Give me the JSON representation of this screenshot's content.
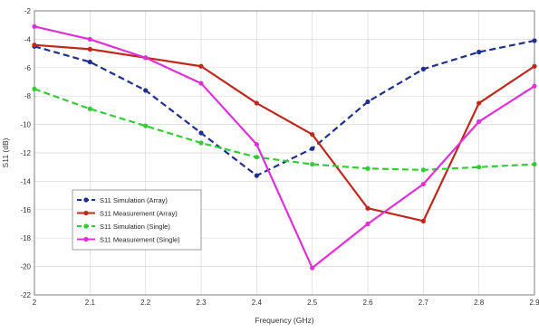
{
  "chart_data": {
    "type": "line",
    "xlabel": "Frequency (GHz)",
    "ylabel": "S11 (dB)",
    "xlim": [
      2.0,
      2.9
    ],
    "ylim": [
      -22,
      -2
    ],
    "xticks": [
      2,
      2.1,
      2.2,
      2.3,
      2.4,
      2.5,
      2.6,
      2.7,
      2.8,
      2.9
    ],
    "xtick_labels": [
      "2",
      "2.1",
      "2.2",
      "2.3",
      "2.4",
      "2.5",
      "2.6",
      "2.7",
      "2.8",
      "2.9"
    ],
    "yticks": [
      -2,
      -4,
      -6,
      -8,
      -10,
      -12,
      -14,
      -16,
      -18,
      -20,
      -22
    ],
    "ytick_labels": [
      "-2",
      "-4",
      "-6",
      "-8",
      "-10",
      "-12",
      "-14",
      "-16",
      "-18",
      "-20",
      "-22"
    ],
    "grid": true,
    "legend_position": "bottom-left",
    "series": [
      {
        "name": "S11 Simulation (Array)",
        "color": "#1f2f8f",
        "dash": "dashed",
        "marker": "circle",
        "x": [
          2.0,
          2.1,
          2.2,
          2.3,
          2.4,
          2.5,
          2.6,
          2.7,
          2.8,
          2.9
        ],
        "y": [
          -4.5,
          -5.6,
          -7.6,
          -10.6,
          -13.6,
          -11.7,
          -8.4,
          -6.1,
          -4.9,
          -4.1
        ]
      },
      {
        "name": "S11 Measurement (Array)",
        "color": "#c0281c",
        "dash": "solid",
        "marker": "circle",
        "x": [
          2.0,
          2.1,
          2.2,
          2.3,
          2.4,
          2.5,
          2.6,
          2.7,
          2.8,
          2.9
        ],
        "y": [
          -4.4,
          -4.7,
          -5.3,
          -5.9,
          -8.5,
          -10.7,
          -15.9,
          -16.8,
          -8.5,
          -5.9
        ]
      },
      {
        "name": "S11 Simulation (Single)",
        "color": "#33cc33",
        "dash": "dashed",
        "marker": "circle",
        "x": [
          2.0,
          2.1,
          2.2,
          2.3,
          2.4,
          2.5,
          2.6,
          2.7,
          2.8,
          2.9
        ],
        "y": [
          -7.5,
          -8.9,
          -10.1,
          -11.3,
          -12.3,
          -12.8,
          -13.1,
          -13.2,
          -13.0,
          -12.8
        ]
      },
      {
        "name": "S11 Measurement (Single)",
        "color": "#e030d8",
        "dash": "solid",
        "marker": "circle",
        "x": [
          2.0,
          2.1,
          2.2,
          2.3,
          2.4,
          2.5,
          2.6,
          2.7,
          2.8,
          2.9
        ],
        "y": [
          -3.1,
          -4.0,
          -5.3,
          -7.1,
          -11.4,
          -20.1,
          -17.0,
          -14.2,
          -9.8,
          -7.3
        ]
      }
    ]
  }
}
